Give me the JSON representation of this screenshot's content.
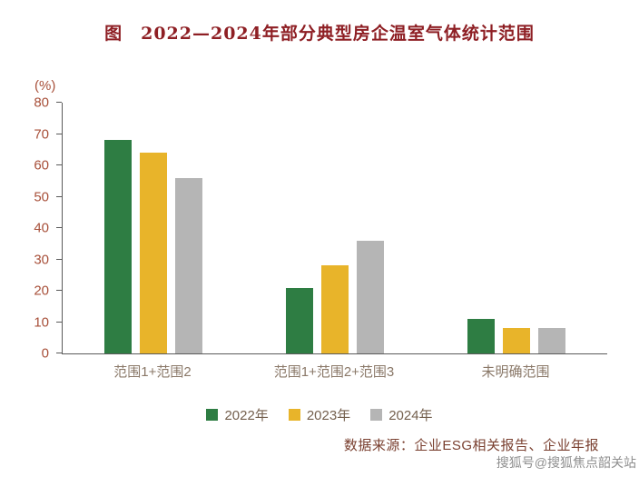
{
  "title": "图　2022—2024年部分典型房企温室气体统计范围",
  "chart_data": {
    "type": "bar",
    "categories": [
      "范围1+范围2",
      "范围1+范围2+范围3",
      "未明确范围"
    ],
    "series": [
      {
        "name": "2022年",
        "color": "#2e7d43",
        "values": [
          68,
          21,
          11
        ]
      },
      {
        "name": "2023年",
        "color": "#e8b42a",
        "values": [
          64,
          28,
          8
        ]
      },
      {
        "name": "2024年",
        "color": "#b5b5b5",
        "values": [
          56,
          36,
          8
        ]
      }
    ],
    "title": "图　2022—2024年部分典型房企温室气体统计范围",
    "xlabel": "",
    "ylabel": "(%)",
    "ylim": [
      0,
      80
    ],
    "yticks": [
      0,
      10,
      20,
      30,
      40,
      50,
      60,
      70,
      80
    ],
    "grid": false,
    "legend_position": "bottom"
  },
  "footer": {
    "source": "数据来源：企业ESG相关报告、企业年报",
    "watermark": "搜狐号@搜狐焦点韶关站"
  }
}
